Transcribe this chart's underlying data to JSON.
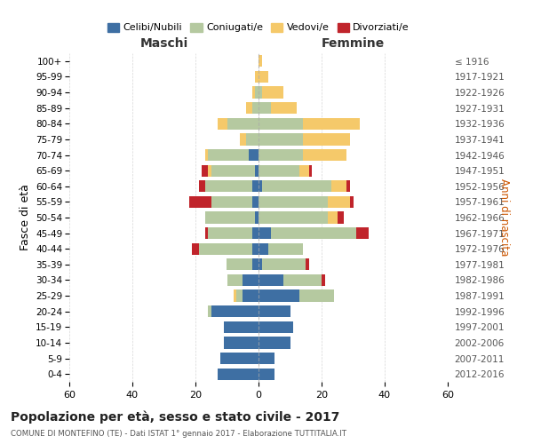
{
  "age_groups": [
    "0-4",
    "5-9",
    "10-14",
    "15-19",
    "20-24",
    "25-29",
    "30-34",
    "35-39",
    "40-44",
    "45-49",
    "50-54",
    "55-59",
    "60-64",
    "65-69",
    "70-74",
    "75-79",
    "80-84",
    "85-89",
    "90-94",
    "95-99",
    "100+"
  ],
  "birth_years": [
    "2012-2016",
    "2007-2011",
    "2002-2006",
    "1997-2001",
    "1992-1996",
    "1987-1991",
    "1982-1986",
    "1977-1981",
    "1972-1976",
    "1967-1971",
    "1962-1966",
    "1957-1961",
    "1952-1956",
    "1947-1951",
    "1942-1946",
    "1937-1941",
    "1932-1936",
    "1927-1931",
    "1922-1926",
    "1917-1921",
    "≤ 1916"
  ],
  "colors": {
    "celibi": "#3e6fa3",
    "coniugati": "#b5c9a0",
    "vedovi": "#f5c96a",
    "divorziati": "#c0242b"
  },
  "maschi": {
    "celibi": [
      13,
      12,
      11,
      11,
      15,
      5,
      5,
      2,
      2,
      2,
      1,
      2,
      2,
      1,
      3,
      0,
      0,
      0,
      0,
      0,
      0
    ],
    "coniugati": [
      0,
      0,
      0,
      0,
      1,
      2,
      5,
      8,
      17,
      14,
      16,
      13,
      15,
      14,
      13,
      4,
      10,
      2,
      1,
      0,
      0
    ],
    "vedovi": [
      0,
      0,
      0,
      0,
      0,
      1,
      0,
      0,
      0,
      0,
      0,
      0,
      0,
      1,
      1,
      2,
      3,
      2,
      1,
      1,
      0
    ],
    "divorziati": [
      0,
      0,
      0,
      0,
      0,
      0,
      0,
      0,
      2,
      1,
      0,
      7,
      2,
      2,
      0,
      0,
      0,
      0,
      0,
      0,
      0
    ]
  },
  "femmine": {
    "celibi": [
      5,
      5,
      10,
      11,
      10,
      13,
      8,
      1,
      3,
      4,
      0,
      0,
      1,
      0,
      0,
      0,
      0,
      0,
      0,
      0,
      0
    ],
    "coniugati": [
      0,
      0,
      0,
      0,
      0,
      11,
      12,
      14,
      11,
      27,
      22,
      22,
      22,
      13,
      14,
      14,
      14,
      4,
      1,
      0,
      0
    ],
    "vedovi": [
      0,
      0,
      0,
      0,
      0,
      0,
      0,
      0,
      0,
      0,
      3,
      7,
      5,
      3,
      14,
      15,
      18,
      8,
      7,
      3,
      1
    ],
    "divorziati": [
      0,
      0,
      0,
      0,
      0,
      0,
      1,
      1,
      0,
      4,
      2,
      1,
      1,
      1,
      0,
      0,
      0,
      0,
      0,
      0,
      0
    ]
  },
  "title": "Popolazione per età, sesso e stato civile - 2017",
  "subtitle": "COMUNE DI MONTEFINO (TE) - Dati ISTAT 1° gennaio 2017 - Elaborazione TUTTITALIA.IT",
  "ylabel": "Fasce di età",
  "ylabel_right": "Anni di nascita",
  "xlabel_left": "Maschi",
  "xlabel_right": "Femmine",
  "xlim": 60,
  "legend_labels": [
    "Celibi/Nubili",
    "Coniugati/e",
    "Vedovi/e",
    "Divorziati/e"
  ],
  "background_color": "#ffffff",
  "grid_color": "#cccccc"
}
